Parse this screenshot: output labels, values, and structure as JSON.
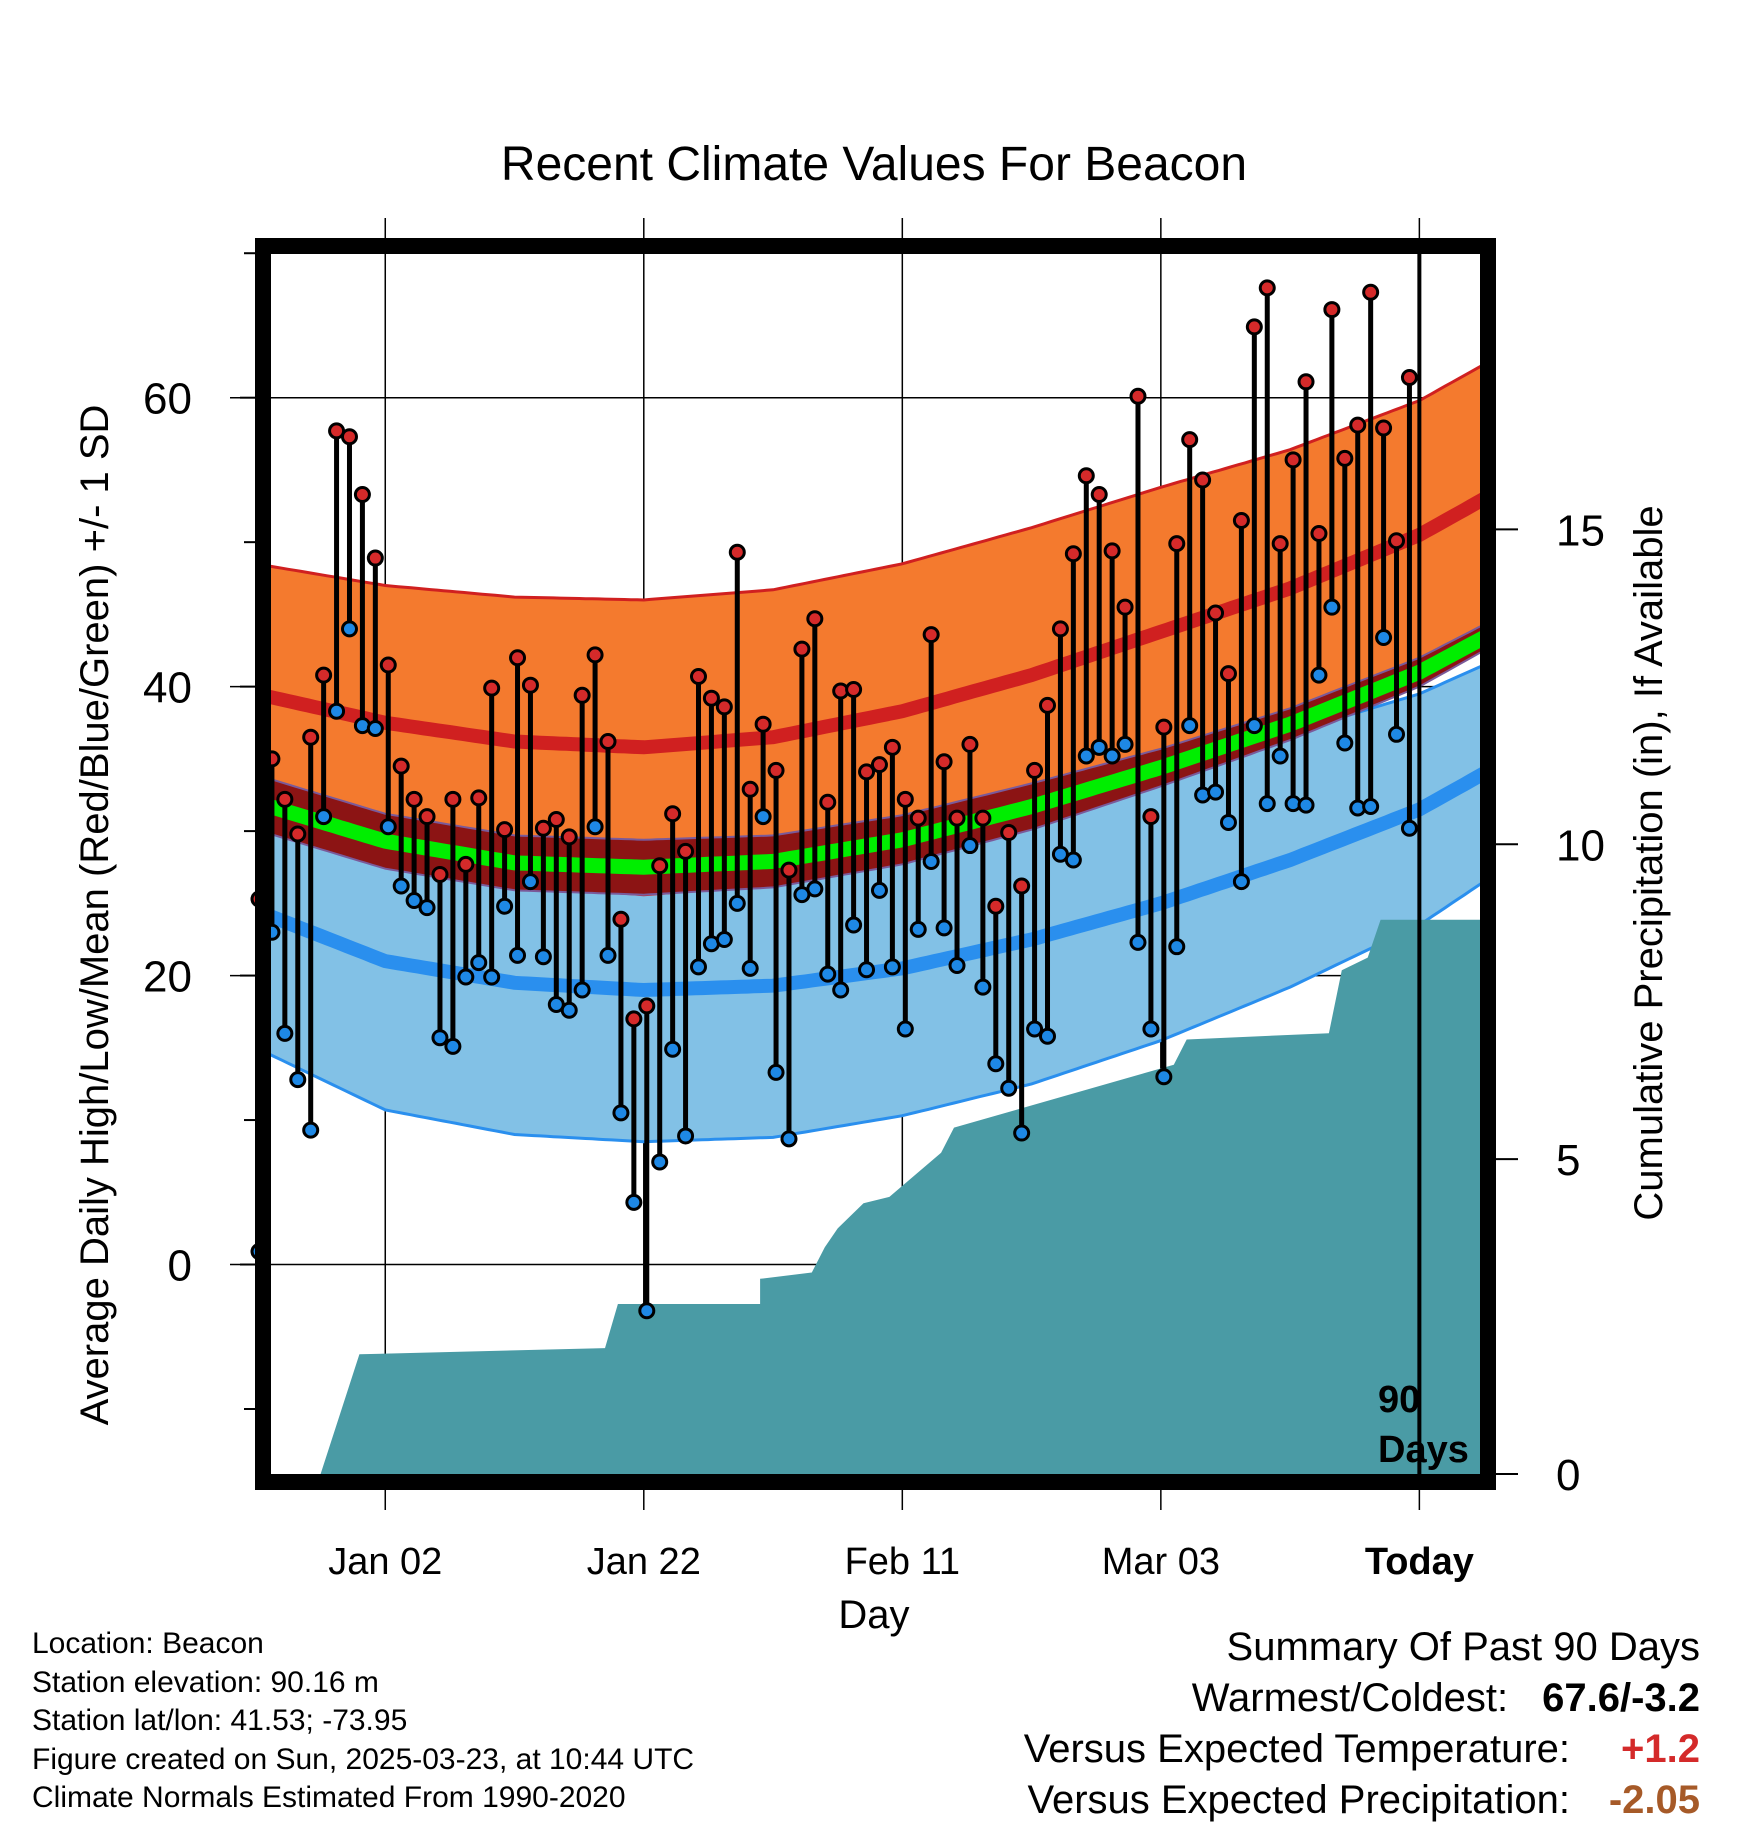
{
  "chart_data": {
    "type": "line",
    "title": "Recent Climate Values For Beacon",
    "xlabel": "Day",
    "ylabel": "Average Daily High/Low/Mean (Red/Blue/Green) +/- 1 SD",
    "y2label": "Cumulative Precipitation (in), If Available",
    "x_range": [
      "2024-12-23",
      "2025-03-28"
    ],
    "ylim": [
      -14.5,
      70.5
    ],
    "y2lim": [
      0,
      19.5
    ],
    "x_ticks": [
      {
        "date": "2025-01-02",
        "label": "Jan 02"
      },
      {
        "date": "2025-01-22",
        "label": "Jan 22"
      },
      {
        "date": "2025-02-11",
        "label": "Feb 11"
      },
      {
        "date": "2025-03-03",
        "label": "Mar 03"
      },
      {
        "date": "2025-03-23",
        "label": "Today"
      }
    ],
    "y_ticks": [
      0,
      20,
      40,
      60
    ],
    "y2_ticks": [
      0,
      5,
      10,
      15
    ],
    "today": "2025-03-23",
    "today_label": "90 Days",
    "grid": true,
    "colors": {
      "high_band": "#f47a2e",
      "high_line": "#d02020",
      "low_band": "#82c1e6",
      "low_line": "#2a8fee",
      "mean_line": "#00ee00",
      "mean_band": "#8c1414",
      "precip": "#4a9ba5",
      "high_marker": "#d52a2a",
      "low_marker": "#1e88e5"
    },
    "normals": {
      "dates": [
        "2024-12-23",
        "2025-01-02",
        "2025-01-12",
        "2025-01-22",
        "2025-02-01",
        "2025-02-11",
        "2025-02-21",
        "2025-03-03",
        "2025-03-13",
        "2025-03-23",
        "2025-03-28"
      ],
      "high_mean": [
        39.5,
        37.5,
        36.2,
        35.8,
        36.5,
        38.3,
        40.8,
        43.8,
        46.8,
        50.5,
        53
      ],
      "high_sd": [
        9,
        9.5,
        10,
        10.2,
        10.2,
        10.2,
        10.2,
        10,
        9.6,
        9.3,
        9.3
      ],
      "low_mean": [
        24.5,
        21,
        19.5,
        19,
        19.3,
        20.5,
        22.5,
        25,
        28,
        31.5,
        34
      ],
      "low_sd": [
        9.5,
        10.3,
        10.5,
        10.5,
        10.5,
        10.2,
        10,
        9.5,
        8.8,
        8,
        7.5
      ],
      "mean_mean": [
        32,
        29.3,
        27.8,
        27.5,
        27.9,
        29.4,
        31.7,
        34.4,
        37.4,
        41,
        43.4
      ],
      "mean_sd": [
        1.9,
        1.9,
        1.9,
        1.9,
        1.8,
        1.7,
        1.6,
        1.3,
        1.1,
        1,
        0.9
      ]
    },
    "series": [
      {
        "name": "High",
        "dates": [
          "2024-12-23",
          "2024-12-24",
          "2024-12-25",
          "2024-12-26",
          "2024-12-27",
          "2024-12-28",
          "2024-12-29",
          "2024-12-30",
          "2024-12-31",
          "2025-01-01",
          "2025-01-02",
          "2025-01-03",
          "2025-01-04",
          "2025-01-05",
          "2025-01-06",
          "2025-01-07",
          "2025-01-08",
          "2025-01-09",
          "2025-01-10",
          "2025-01-11",
          "2025-01-12",
          "2025-01-13",
          "2025-01-14",
          "2025-01-15",
          "2025-01-16",
          "2025-01-17",
          "2025-01-18",
          "2025-01-19",
          "2025-01-20",
          "2025-01-21",
          "2025-01-22",
          "2025-01-23",
          "2025-01-24",
          "2025-01-25",
          "2025-01-26",
          "2025-01-27",
          "2025-01-28",
          "2025-01-29",
          "2025-01-30",
          "2025-01-31",
          "2025-02-01",
          "2025-02-02",
          "2025-02-03",
          "2025-02-04",
          "2025-02-05",
          "2025-02-06",
          "2025-02-07",
          "2025-02-08",
          "2025-02-09",
          "2025-02-10",
          "2025-02-11",
          "2025-02-12",
          "2025-02-13",
          "2025-02-14",
          "2025-02-15",
          "2025-02-16",
          "2025-02-17",
          "2025-02-18",
          "2025-02-19",
          "2025-02-20",
          "2025-02-21",
          "2025-02-22",
          "2025-02-23",
          "2025-02-24",
          "2025-02-25",
          "2025-02-26",
          "2025-02-27",
          "2025-02-28",
          "2025-03-01",
          "2025-03-02",
          "2025-03-03",
          "2025-03-04",
          "2025-03-05",
          "2025-03-06",
          "2025-03-07",
          "2025-03-08",
          "2025-03-09",
          "2025-03-10",
          "2025-03-11",
          "2025-03-12",
          "2025-03-13",
          "2025-03-14",
          "2025-03-15",
          "2025-03-16",
          "2025-03-17",
          "2025-03-18",
          "2025-03-19",
          "2025-03-20",
          "2025-03-21",
          "2025-03-22"
        ],
        "values": [
          25.3,
          35,
          32.2,
          29.8,
          36.5,
          40.8,
          57.7,
          57.3,
          53.3,
          48.9,
          41.5,
          34.5,
          32.2,
          31,
          27,
          32.2,
          27.7,
          32.3,
          39.9,
          30.1,
          42,
          40.1,
          30.2,
          30.8,
          29.6,
          39.4,
          42.2,
          36.2,
          23.9,
          17,
          17.9,
          27.6,
          31.2,
          28.6,
          40.7,
          39.2,
          38.6,
          49.3,
          32.9,
          37.4,
          34.2,
          27.3,
          42.6,
          44.7,
          32,
          39.7,
          39.8,
          34.1,
          34.6,
          35.8,
          32.2,
          30.9,
          43.6,
          34.8,
          30.9,
          36,
          30.9,
          24.8,
          29.9,
          26.2,
          34.2,
          38.7,
          44,
          49.2,
          54.6,
          53.3,
          49.4,
          45.5,
          60.1,
          31,
          37.2,
          49.9,
          57.1,
          54.3,
          45.1,
          40.9,
          51.5,
          64.9,
          67.6,
          49.9,
          55.7,
          61.1,
          50.6,
          66.1,
          55.8,
          58.1,
          67.3,
          57.9,
          50.1,
          61.4
        ]
      },
      {
        "name": "Low",
        "dates": [
          "2024-12-23",
          "2024-12-24",
          "2024-12-25",
          "2024-12-26",
          "2024-12-27",
          "2024-12-28",
          "2024-12-29",
          "2024-12-30",
          "2024-12-31",
          "2025-01-01",
          "2025-01-02",
          "2025-01-03",
          "2025-01-04",
          "2025-01-05",
          "2025-01-06",
          "2025-01-07",
          "2025-01-08",
          "2025-01-09",
          "2025-01-10",
          "2025-01-11",
          "2025-01-12",
          "2025-01-13",
          "2025-01-14",
          "2025-01-15",
          "2025-01-16",
          "2025-01-17",
          "2025-01-18",
          "2025-01-19",
          "2025-01-20",
          "2025-01-21",
          "2025-01-22",
          "2025-01-23",
          "2025-01-24",
          "2025-01-25",
          "2025-01-26",
          "2025-01-27",
          "2025-01-28",
          "2025-01-29",
          "2025-01-30",
          "2025-01-31",
          "2025-02-01",
          "2025-02-02",
          "2025-02-03",
          "2025-02-04",
          "2025-02-05",
          "2025-02-06",
          "2025-02-07",
          "2025-02-08",
          "2025-02-09",
          "2025-02-10",
          "2025-02-11",
          "2025-02-12",
          "2025-02-13",
          "2025-02-14",
          "2025-02-15",
          "2025-02-16",
          "2025-02-17",
          "2025-02-18",
          "2025-02-19",
          "2025-02-20",
          "2025-02-21",
          "2025-02-22",
          "2025-02-23",
          "2025-02-24",
          "2025-02-25",
          "2025-02-26",
          "2025-02-27",
          "2025-02-28",
          "2025-03-01",
          "2025-03-02",
          "2025-03-03",
          "2025-03-04",
          "2025-03-05",
          "2025-03-06",
          "2025-03-07",
          "2025-03-08",
          "2025-03-09",
          "2025-03-10",
          "2025-03-11",
          "2025-03-12",
          "2025-03-13",
          "2025-03-14",
          "2025-03-15",
          "2025-03-16",
          "2025-03-17",
          "2025-03-18",
          "2025-03-19",
          "2025-03-20",
          "2025-03-21",
          "2025-03-22"
        ],
        "values": [
          0.9,
          23,
          16,
          12.8,
          9.3,
          31,
          38.3,
          44,
          37.3,
          37.1,
          30.3,
          26.2,
          25.2,
          24.7,
          15.7,
          15.1,
          19.9,
          20.9,
          19.9,
          24.8,
          21.4,
          26.5,
          21.3,
          18,
          17.6,
          19,
          30.3,
          21.4,
          10.5,
          4.3,
          -3.2,
          7.1,
          14.9,
          8.9,
          20.6,
          22.2,
          22.5,
          25,
          20.5,
          31,
          13.3,
          8.7,
          25.6,
          26,
          20.1,
          19,
          23.5,
          20.4,
          25.9,
          20.6,
          16.3,
          23.2,
          27.9,
          23.3,
          20.7,
          29,
          19.2,
          13.9,
          12.2,
          9.1,
          16.3,
          15.8,
          28.4,
          28,
          35.2,
          35.8,
          35.2,
          36,
          22.3,
          16.3,
          13,
          22,
          37.3,
          32.5,
          32.7,
          30.6,
          26.5,
          37.3,
          31.9,
          35.2,
          31.9,
          31.8,
          40.8,
          45.5,
          36.1,
          31.6,
          31.7,
          43.4,
          36.7,
          30.2
        ]
      },
      {
        "name": "Precipitation",
        "axis": "right",
        "dates": [
          "2024-12-23",
          "2024-12-28",
          "2024-12-31",
          "2025-01-19",
          "2025-01-20",
          "2025-01-31",
          "2025-01-31",
          "2025-02-04",
          "2025-02-05",
          "2025-02-06",
          "2025-02-08",
          "2025-02-10",
          "2025-02-14",
          "2025-02-15",
          "2025-03-04",
          "2025-03-05",
          "2025-03-16",
          "2025-03-17",
          "2025-03-19",
          "2025-03-20",
          "2025-03-28"
        ],
        "values": [
          0,
          0,
          1.9,
          2,
          2.7,
          2.7,
          3.1,
          3.2,
          3.6,
          3.9,
          4.3,
          4.4,
          5.1,
          5.5,
          6.5,
          6.9,
          7.0,
          8.0,
          8.2,
          8.8,
          8.8
        ]
      }
    ]
  },
  "info": {
    "location": "Location: Beacon",
    "elevation": "Station elevation: 90.16 m",
    "latlon": "Station lat/lon: 41.53; -73.95",
    "created": "Figure created on Sun, 2025-03-23, at 10:44 UTC",
    "normals": "Climate Normals Estimated From 1990-2020"
  },
  "summary": {
    "heading": "Summary Of Past 90 Days",
    "warm_cold_label": "Warmest/Coldest:",
    "warm_cold_value": "67.6/-3.2",
    "temp_label": "Versus Expected Temperature:",
    "temp_value": "+1.2",
    "temp_color": "#d42a2a",
    "precip_label": "Versus Expected Precipitation:",
    "precip_value": "-2.05",
    "precip_color": "#a65a28"
  }
}
